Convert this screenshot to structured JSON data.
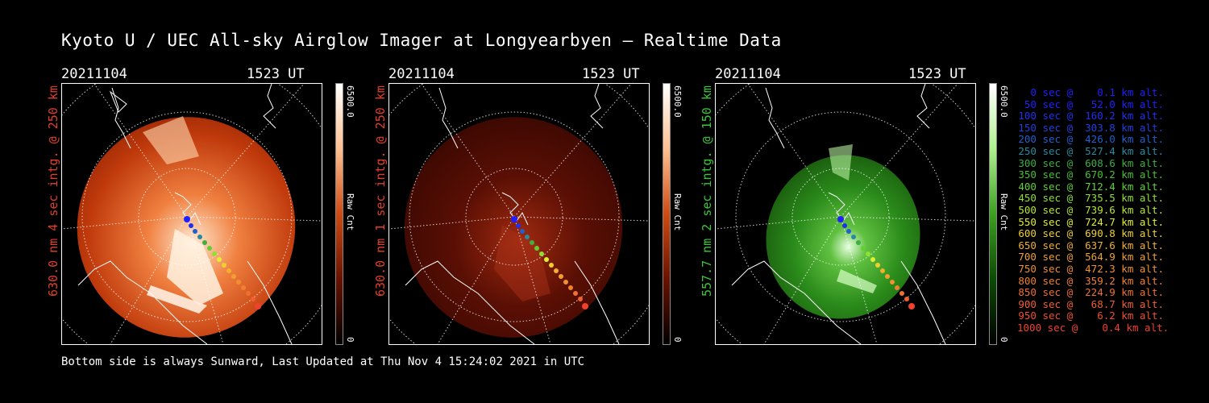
{
  "title": "Kyoto U / UEC All-sky Airglow Imager at Longyearbyen – Realtime Data",
  "footer": "Bottom side is always Sunward, Last Updated at Thu Nov  4 15:24:02 2021 in UTC",
  "panels": [
    {
      "date": "20211104",
      "time": "1523 UT",
      "side_label": "630.0 nm 4 sec intg. @ 250 km",
      "label_color": "#e0402a",
      "colorbar_max": "6500.0",
      "colorbar_min": "0",
      "colorbar_unit": "Raw Cnt"
    },
    {
      "date": "20211104",
      "time": "1523 UT",
      "side_label": "630.0 nm 1 sec intg. @ 250 km",
      "label_color": "#e0402a",
      "colorbar_max": "6500.0",
      "colorbar_min": "0",
      "colorbar_unit": "Raw Cnt"
    },
    {
      "date": "20211104",
      "time": "1523 UT",
      "side_label": "557.7 nm 2 sec intg. @ 150 km",
      "label_color": "#3ac53a",
      "colorbar_max": "6500.0",
      "colorbar_min": "0",
      "colorbar_unit": "Raw Cnt"
    }
  ],
  "legend": [
    {
      "text": "0 sec @    0.1 km alt.",
      "color": "#2020ff"
    },
    {
      "text": "50 sec @   52.0 km alt.",
      "color": "#2020ff"
    },
    {
      "text": "100 sec @  160.2 km alt.",
      "color": "#2030f0"
    },
    {
      "text": "150 sec @  303.8 km alt.",
      "color": "#2040e0"
    },
    {
      "text": "200 sec @  426.0 km alt.",
      "color": "#2060d0"
    },
    {
      "text": "250 sec @  527.4 km alt.",
      "color": "#2a8aa0"
    },
    {
      "text": "300 sec @  608.6 km alt.",
      "color": "#3cb040"
    },
    {
      "text": "350 sec @  670.2 km alt.",
      "color": "#48c030"
    },
    {
      "text": "400 sec @  712.4 km alt.",
      "color": "#60d030"
    },
    {
      "text": "450 sec @  735.5 km alt.",
      "color": "#90e030"
    },
    {
      "text": "500 sec @  739.6 km alt.",
      "color": "#b8e830"
    },
    {
      "text": "550 sec @  724.7 km alt.",
      "color": "#e0f030"
    },
    {
      "text": "600 sec @  690.8 km alt.",
      "color": "#f0d030"
    },
    {
      "text": "650 sec @  637.6 km alt.",
      "color": "#f0b030"
    },
    {
      "text": "700 sec @  564.9 km alt.",
      "color": "#f0a030"
    },
    {
      "text": "750 sec @  472.3 km alt.",
      "color": "#f09030"
    },
    {
      "text": "800 sec @  359.2 km alt.",
      "color": "#f08030"
    },
    {
      "text": "850 sec @  224.9 km alt.",
      "color": "#f07030"
    },
    {
      "text": "900 sec @   68.7 km alt.",
      "color": "#f06030"
    },
    {
      "text": "950 sec @    6.2 km alt.",
      "color": "#f05030"
    },
    {
      "text": "1000 sec @    0.4 km alt.",
      "color": "#f04030"
    }
  ]
}
